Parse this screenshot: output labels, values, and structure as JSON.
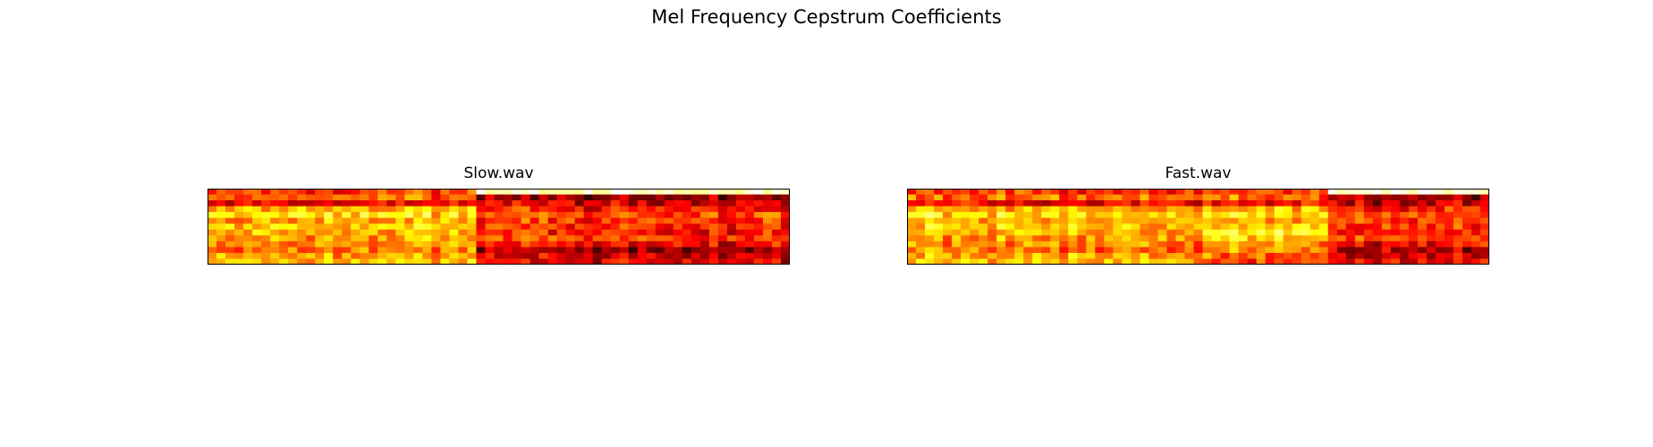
{
  "chart_data": [
    {
      "type": "heatmap",
      "title": "Slow.wav",
      "figure_title": "Mel Frequency Cepstrum Coefficients",
      "colormap": "hot",
      "rows": 13,
      "cols": 65,
      "ylim": [
        0,
        13
      ],
      "xlim": [
        0,
        65
      ],
      "axes_visible": false,
      "segments": [
        {
          "start": 0,
          "end": 30,
          "profile": "voiced"
        },
        {
          "start": 30,
          "end": 65,
          "profile": "quiet"
        }
      ],
      "seed": 17
    },
    {
      "type": "heatmap",
      "title": "Fast.wav",
      "figure_title": "Mel Frequency Cepstrum Coefficients",
      "colormap": "hot",
      "rows": 13,
      "cols": 65,
      "ylim": [
        0,
        13
      ],
      "xlim": [
        0,
        65
      ],
      "axes_visible": false,
      "segments": [
        {
          "start": 0,
          "end": 33,
          "profile": "voiced"
        },
        {
          "start": 33,
          "end": 47,
          "profile": "voiced_bright"
        },
        {
          "start": 47,
          "end": 65,
          "profile": "quiet"
        }
      ],
      "seed": 91
    }
  ]
}
